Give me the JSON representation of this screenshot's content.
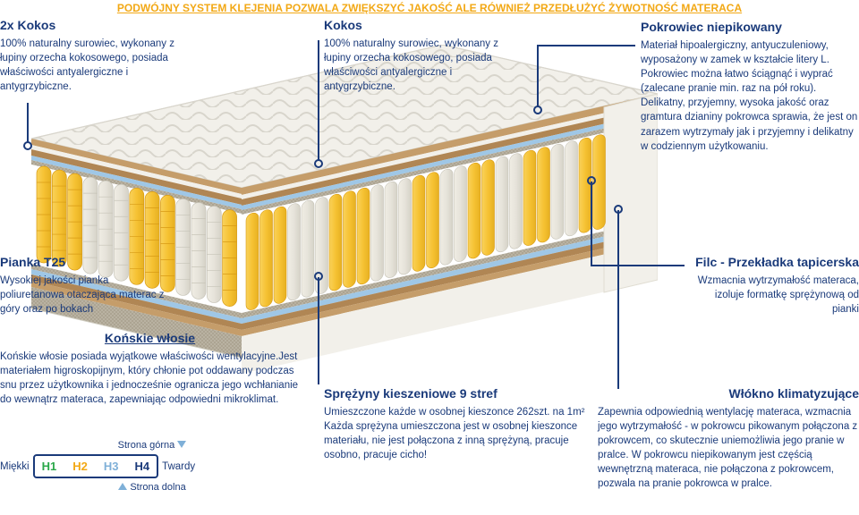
{
  "headline": "PODWÓJNY SYSTEM KLEJENIA POZWALA ZWIĘKSZYĆ JAKOŚĆ ALE RÓWNIEŻ PRZEDŁUŻYĆ ŻYWOTNOŚĆ MATERACA",
  "colors": {
    "heading": "#f2a815",
    "text": "#1a3a7a",
    "h1": "#2aa84a",
    "h2": "#f2a815",
    "h3": "#7fb0d8",
    "h4": "#1a3a7a",
    "springYellow": "#f6c233",
    "springGrey": "#e6e3da",
    "foamWhite": "#f2f0ea",
    "layerBrown": "#b08654",
    "layerBrownLight": "#c59d6a",
    "layerBlue": "#9fc7e6"
  },
  "sections": {
    "kokos2x": {
      "title": "2x Kokos",
      "text": "100% naturalny surowiec, wykonany z łupiny orzecha kokosowego, posiada właściwości antyalergiczne i antygrzybiczne."
    },
    "kokos": {
      "title": "Kokos",
      "text": "100% naturalny surowiec, wykonany z łupiny orzecha kokosowego, posiada właściwości antyalergiczne i antygrzybiczne."
    },
    "pokrowiec": {
      "title": "Pokrowiec niepikowany",
      "text": "Materiał hipoalergiczny, antyuczuleniowy, wyposażony w zamek w kształcie litery L. Pokrowiec można łatwo ściągnąć i wyprać (zalecane pranie min. raz na pół roku). Delikatny, przyjemny, wysoka jakość oraz gramtura dzianiny pokrowca sprawia, że jest on zarazem wytrzymały jak i przyjemny i delikatny w codziennym użytkowaniu."
    },
    "pianka": {
      "title": "Pianka T25",
      "text": "Wysokiej jakości pianka poliuretanowa otaczająca materac z góry oraz po bokach"
    },
    "konskie": {
      "title": "Końskie włosie",
      "text": "Końskie włosie posiada wyjątkowe właściwości wentylacyjne.Jest materiałem higroskopijnym, który chłonie pot oddawany podczas snu przez użytkownika i jednocześnie ogranicza jego wchłanianie do wewnątrz materaca, zapewniając odpowiedni mikroklimat."
    },
    "sprezyny": {
      "title": "Sprężyny kieszeniowe 9 stref",
      "text": "Umieszczone każde w osobnej kieszonce 262szt. na 1m²\nKażda sprężyna umieszczona jest w osobnej kieszonce materiału, nie jest połączona z inną sprężyną, pracuje osobno, pracuje cicho!"
    },
    "filc": {
      "title": "Filc - Przekładka tapicerska",
      "text": "Wzmacnia wytrzymałość materaca, izoluje formatkę sprężynową od pianki"
    },
    "wlokno": {
      "title": "Włókno klimatyzujące",
      "text": "Zapewnia odpowiednią wentylację materaca, wzmacnia jego wytrzymałość - w pokrowcu pikowanym połączona z pokrowcem, co skutecznie uniemożliwia jego pranie w pralce. W pokrowcu niepikowanym jest częścią wewnętrzną materaca, nie połączona z pokrowcem, pozwala na pranie pokrowca w pralce."
    }
  },
  "hardness": {
    "top": "Strona górna",
    "bottom": "Strona dolna",
    "soft": "Miękki",
    "hard": "Twardy",
    "levels": [
      "H1",
      "H2",
      "H3",
      "H4"
    ]
  }
}
